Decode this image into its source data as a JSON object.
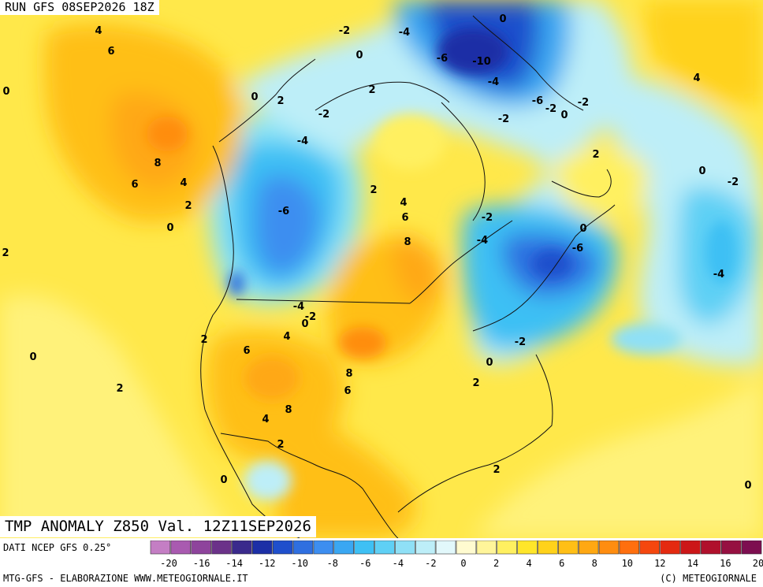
{
  "header": {
    "run_title": "RUN GFS 08SEP2026 18Z",
    "product_title": "TMP ANOMALY Z850 Val. 12Z11SEP2026"
  },
  "footer": {
    "source": "DATI NCEP GFS 0.25°",
    "credit_left": "MTG-GFS - ELABORAZIONE WWW.METEOGIORNALE.IT",
    "credit_right": "(C) METEOGIORNALE"
  },
  "legend": {
    "colors": [
      "#c47ec4",
      "#a95ab0",
      "#8e449c",
      "#6b3289",
      "#3a2a8c",
      "#1c2fa6",
      "#1f4fcc",
      "#2f6fe0",
      "#3d8ef0",
      "#3aa7f2",
      "#3ec0f4",
      "#5fd0f5",
      "#8fe0f6",
      "#bdeef8",
      "#e2f8fb",
      "#fffbd0",
      "#fff59a",
      "#fff060",
      "#ffe62a",
      "#ffd21a",
      "#ffbf16",
      "#ffa812",
      "#ff8d10",
      "#ff6f0e",
      "#f5470e",
      "#e42a10",
      "#cc1618",
      "#b0102c",
      "#961041",
      "#7d0e50"
    ],
    "ticks": [
      "-20",
      "-16",
      "-14",
      "-12",
      "-10",
      "-8",
      "-6",
      "-4",
      "-2",
      "0",
      "2",
      "4",
      "6",
      "8",
      "10",
      "12",
      "14",
      "16",
      "20"
    ]
  },
  "map_labels": [
    {
      "text": "4",
      "ax": 125,
      "ay": 38
    },
    {
      "text": "6",
      "ax": 141,
      "ay": 64
    },
    {
      "text": "0",
      "ax": 8,
      "ay": 115
    },
    {
      "text": "8",
      "ax": 200,
      "ay": 206
    },
    {
      "text": "6",
      "ax": 171,
      "ay": 233
    },
    {
      "text": "4",
      "ax": 233,
      "ay": 231
    },
    {
      "text": "2",
      "ax": 239,
      "ay": 260
    },
    {
      "text": "0",
      "ax": 216,
      "ay": 288
    },
    {
      "text": "2",
      "ax": 7,
      "ay": 320
    },
    {
      "text": "0",
      "ax": 323,
      "ay": 122
    },
    {
      "text": "2",
      "ax": 356,
      "ay": 127
    },
    {
      "text": "-2",
      "ax": 411,
      "ay": 144
    },
    {
      "text": "-4",
      "ax": 384,
      "ay": 178
    },
    {
      "text": "-6",
      "ax": 360,
      "ay": 267
    },
    {
      "text": "2",
      "ax": 474,
      "ay": 240
    },
    {
      "text": "4",
      "ax": 512,
      "ay": 256
    },
    {
      "text": "6",
      "ax": 514,
      "ay": 275
    },
    {
      "text": "8",
      "ax": 517,
      "ay": 306
    },
    {
      "text": "-2",
      "ax": 437,
      "ay": 38
    },
    {
      "text": "-4",
      "ax": 513,
      "ay": 40
    },
    {
      "text": "0",
      "ax": 456,
      "ay": 69
    },
    {
      "text": "2",
      "ax": 472,
      "ay": 113
    },
    {
      "text": "-6",
      "ax": 561,
      "ay": 73
    },
    {
      "text": "-10",
      "ax": 611,
      "ay": 77
    },
    {
      "text": "-4",
      "ax": 626,
      "ay": 103
    },
    {
      "text": "0",
      "ax": 638,
      "ay": 23
    },
    {
      "text": "-6",
      "ax": 682,
      "ay": 127
    },
    {
      "text": "-2",
      "ax": 699,
      "ay": 137
    },
    {
      "text": "0",
      "ax": 716,
      "ay": 145
    },
    {
      "text": "-2",
      "ax": 740,
      "ay": 129
    },
    {
      "text": "-2",
      "ax": 639,
      "ay": 150
    },
    {
      "text": "4",
      "ax": 884,
      "ay": 98
    },
    {
      "text": "2",
      "ax": 756,
      "ay": 195
    },
    {
      "text": "0",
      "ax": 891,
      "ay": 216
    },
    {
      "text": "-2",
      "ax": 930,
      "ay": 230
    },
    {
      "text": "-2",
      "ax": 618,
      "ay": 275
    },
    {
      "text": "-4",
      "ax": 612,
      "ay": 304
    },
    {
      "text": "0",
      "ax": 740,
      "ay": 289
    },
    {
      "text": "-6",
      "ax": 733,
      "ay": 314
    },
    {
      "text": "-4",
      "ax": 912,
      "ay": 347
    },
    {
      "text": "-4",
      "ax": 379,
      "ay": 388
    },
    {
      "text": "-2",
      "ax": 394,
      "ay": 401
    },
    {
      "text": "0",
      "ax": 387,
      "ay": 410
    },
    {
      "text": "4",
      "ax": 364,
      "ay": 426
    },
    {
      "text": "2",
      "ax": 259,
      "ay": 430
    },
    {
      "text": "6",
      "ax": 313,
      "ay": 444
    },
    {
      "text": "-2",
      "ax": 660,
      "ay": 433
    },
    {
      "text": "0",
      "ax": 621,
      "ay": 459
    },
    {
      "text": "0",
      "ax": 42,
      "ay": 452
    },
    {
      "text": "8",
      "ax": 443,
      "ay": 473
    },
    {
      "text": "6",
      "ax": 441,
      "ay": 495
    },
    {
      "text": "2",
      "ax": 604,
      "ay": 485
    },
    {
      "text": "2",
      "ax": 152,
      "ay": 492
    },
    {
      "text": "8",
      "ax": 366,
      "ay": 519
    },
    {
      "text": "4",
      "ax": 337,
      "ay": 531
    },
    {
      "text": "2",
      "ax": 356,
      "ay": 563
    },
    {
      "text": "2",
      "ax": 630,
      "ay": 595
    },
    {
      "text": "0",
      "ax": 284,
      "ay": 608
    },
    {
      "text": "0",
      "ax": 949,
      "ay": 615
    }
  ]
}
